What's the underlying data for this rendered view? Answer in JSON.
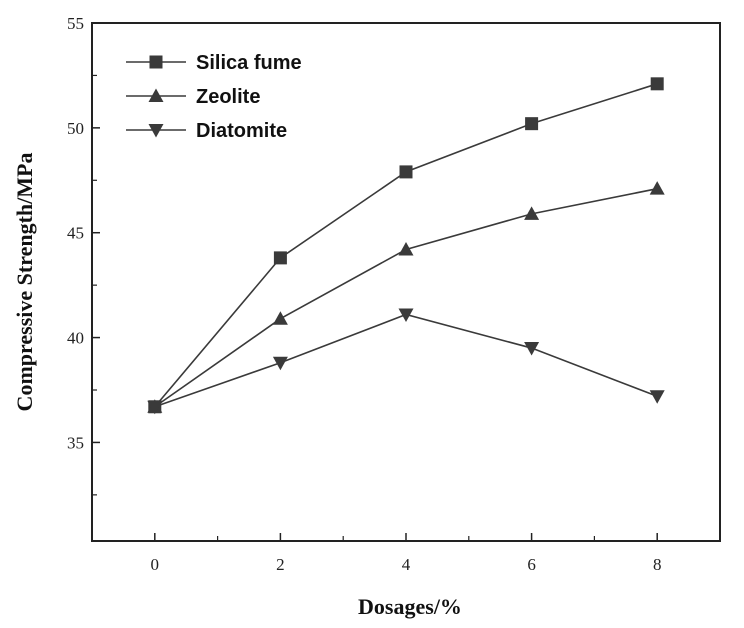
{
  "chart_data": {
    "type": "line",
    "xlabel": "Dosages/%",
    "ylabel": "Compressive Strength/MPa",
    "x": [
      0,
      2,
      4,
      6,
      8
    ],
    "xticks": [
      "0",
      "2",
      "4",
      "6",
      "8"
    ],
    "xlim": [
      -1,
      9
    ],
    "ylim": [
      30.3,
      55
    ],
    "yticks": [
      "35",
      "40",
      "45",
      "50",
      "55"
    ],
    "grid": false,
    "legend_position": "top-left",
    "series": [
      {
        "name": "Silica fume",
        "marker": "square",
        "values": [
          36.7,
          43.8,
          47.9,
          50.2,
          52.1
        ]
      },
      {
        "name": "Zeolite",
        "marker": "triangle-up",
        "values": [
          36.7,
          40.9,
          44.2,
          45.9,
          47.1
        ]
      },
      {
        "name": "Diatomite",
        "marker": "triangle-down",
        "values": [
          36.7,
          38.8,
          41.1,
          39.5,
          37.2
        ]
      }
    ],
    "colors": {
      "line": "#3a3a3a",
      "marker": "#3a3a3a",
      "axis": "#222222"
    }
  }
}
